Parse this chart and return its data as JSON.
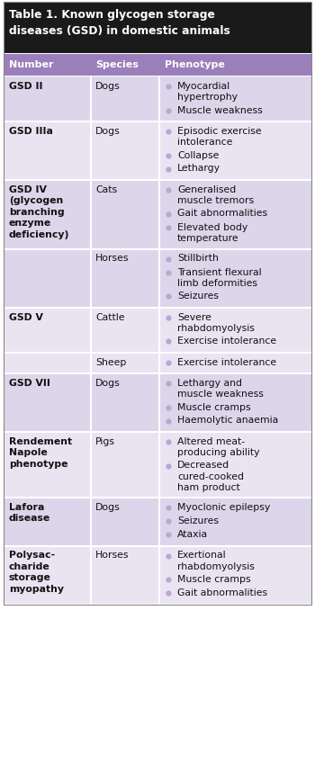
{
  "title_line1": "Table 1. Known glycogen storage",
  "title_line2": "diseases (GSD) in domestic animals",
  "header": [
    "Number",
    "Species",
    "Phenotype"
  ],
  "header_bg": "#9b7fba",
  "header_text_color": "#ffffff",
  "title_bg": "#1a1a1a",
  "title_text_color": "#ffffff",
  "row_bg_odd": "#ddd5ea",
  "row_bg_even": "#eae4f2",
  "bullet_color": "#b8a8d0",
  "text_color": "#111111",
  "figsize": [
    3.5,
    8.48
  ],
  "dpi": 100,
  "rows": [
    {
      "number": "GSD II",
      "species": "Dogs",
      "phenotype": [
        "Myocardial\nhypertrophy",
        "Muscle weakness"
      ],
      "bg": "odd",
      "num_bold": true
    },
    {
      "number": "GSD IIIa",
      "species": "Dogs",
      "phenotype": [
        "Episodic exercise\nintolerance",
        "Collapse",
        "Lethargy"
      ],
      "bg": "even",
      "num_bold": true
    },
    {
      "number": "GSD IV\n(glycogen\nbranching\nenzyme\ndeficiency)",
      "species": "Cats",
      "phenotype": [
        "Generalised\nmuscle tremors",
        "Gait abnormalities",
        "Elevated body\ntemperature"
      ],
      "bg": "odd",
      "num_bold": true
    },
    {
      "number": "",
      "species": "Horses",
      "phenotype": [
        "Stillbirth",
        "Transient flexural\nlimb deformities",
        "Seizures"
      ],
      "bg": "odd",
      "num_bold": false
    },
    {
      "number": "GSD V",
      "species": "Cattle",
      "phenotype": [
        "Severe\nrhabdomyolysis",
        "Exercise intolerance"
      ],
      "bg": "even",
      "num_bold": true
    },
    {
      "number": "",
      "species": "Sheep",
      "phenotype": [
        "Exercise intolerance"
      ],
      "bg": "even",
      "num_bold": false
    },
    {
      "number": "GSD VII",
      "species": "Dogs",
      "phenotype": [
        "Lethargy and\nmuscle weakness",
        "Muscle cramps",
        "Haemolytic anaemia"
      ],
      "bg": "odd",
      "num_bold": true
    },
    {
      "number": "Rendement\nNapole\nphenotype",
      "species": "Pigs",
      "phenotype": [
        "Altered meat-\nproducing ability",
        "Decreased\ncured-cooked\nham product"
      ],
      "bg": "even",
      "num_bold": false
    },
    {
      "number": "Lafora\ndisease",
      "species": "Dogs",
      "phenotype": [
        "Myoclonic epilepsy",
        "Seizures",
        "Ataxia"
      ],
      "bg": "odd",
      "num_bold": false
    },
    {
      "number": "Polysac-\ncharide\nstorage\nmyopathy",
      "species": "Horses",
      "phenotype": [
        "Exertional\nrhabdomyolysis",
        "Muscle cramps",
        "Gait abnormalities"
      ],
      "bg": "even",
      "num_bold": false
    }
  ]
}
